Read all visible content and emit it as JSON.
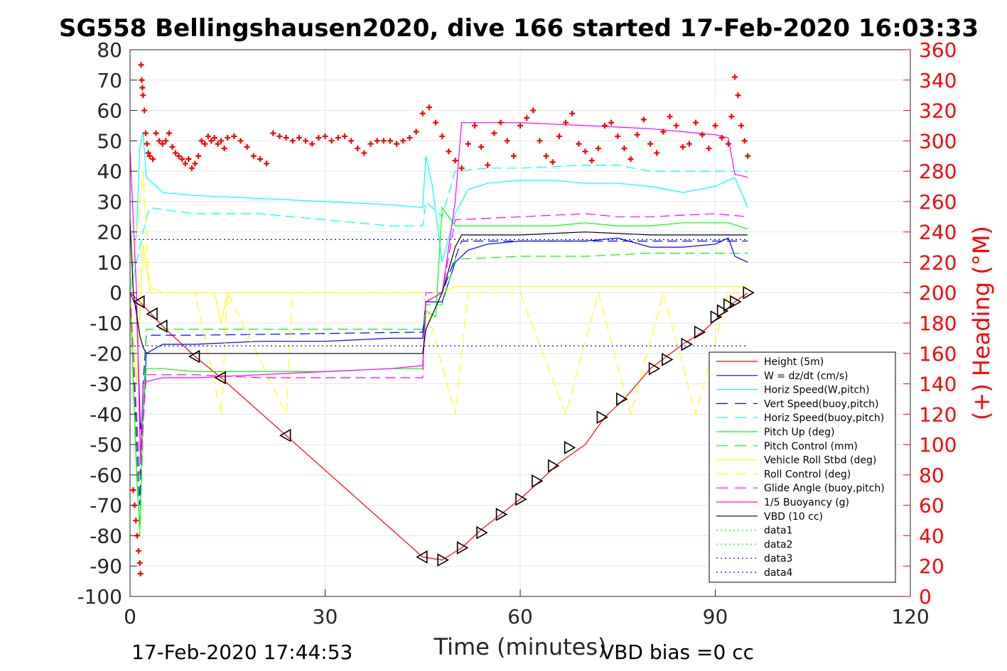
{
  "chart_data": {
    "type": "line",
    "title": "SG558 Bellingshausen2020, dive 166 started 17-Feb-2020 16:03:33",
    "xlabel": "Time (minutes)",
    "ylabel": "",
    "ylabel_right": "(+) Heading (°M)",
    "xlim": [
      0,
      120
    ],
    "ylim": [
      -100,
      80
    ],
    "ylim_right": [
      0,
      360
    ],
    "xticks": [
      "0",
      "30",
      "60",
      "90",
      "120"
    ],
    "yticks": [
      "80",
      "70",
      "60",
      "50",
      "40",
      "30",
      "20",
      "10",
      "0",
      "-10",
      "-20",
      "-30",
      "-40",
      "-50",
      "-60",
      "-70",
      "-80",
      "-90",
      "-100"
    ],
    "yticks_right": [
      "360",
      "340",
      "320",
      "300",
      "280",
      "260",
      "240",
      "220",
      "200",
      "180",
      "160",
      "140",
      "120",
      "100",
      "80",
      "60",
      "40",
      "20",
      "0"
    ],
    "grid": true,
    "legend_position": "bottom-right",
    "footer_left": "17-Feb-2020 17:44:53",
    "footer_right": "VBD bias =0 cc",
    "series": [
      {
        "name": "Height (5m)",
        "color": "#ff0000",
        "style": "solid",
        "x": [
          0,
          1.5,
          5,
          10,
          14,
          24,
          35,
          45,
          48,
          51,
          54,
          57,
          60,
          63,
          66,
          70,
          73,
          76,
          80,
          85,
          88,
          91,
          93,
          95
        ],
        "y": [
          0,
          -3,
          -11,
          -21,
          -28,
          -47,
          -68,
          -87,
          -88,
          -84,
          -78,
          -73,
          -68,
          -62,
          -56,
          -50,
          -41,
          -35,
          -25,
          -17,
          -13,
          -7,
          -3,
          0
        ]
      },
      {
        "name": "W = dz/dt (cm/s)",
        "color": "#0000ff",
        "style": "solid",
        "x": [
          0,
          1,
          1.6,
          2,
          2.5,
          5,
          10,
          20,
          30,
          40,
          45,
          45.5,
          48,
          50,
          52,
          55,
          60,
          65,
          70,
          75,
          80,
          85,
          90,
          92,
          93,
          95
        ],
        "y": [
          0,
          -5,
          -45,
          -40,
          -20,
          -17,
          -17,
          -16,
          -16,
          -15,
          -15,
          -3,
          -3,
          10,
          14,
          16,
          17,
          17,
          17,
          18,
          15,
          15,
          16,
          18,
          12,
          10
        ]
      },
      {
        "name": "Horiz Speed(W,pitch)",
        "color": "#00ffff",
        "style": "solid",
        "x": [
          0,
          1,
          1.5,
          2,
          2.5,
          5,
          10,
          20,
          30,
          40,
          45,
          45.5,
          46.5,
          48,
          50,
          52,
          55,
          60,
          65,
          70,
          75,
          80,
          85,
          90,
          93,
          95
        ],
        "y": [
          0,
          20,
          48,
          53,
          38,
          33,
          32,
          31,
          30,
          29,
          28,
          45,
          35,
          10,
          26,
          34,
          36,
          37,
          37,
          36,
          36,
          35,
          33,
          35,
          38,
          28
        ]
      },
      {
        "name": "Vert Speed(buoy,pitch)",
        "color": "#0000ff",
        "style": "dashed",
        "x": [
          0,
          1.5,
          2,
          2.5,
          10,
          45,
          45.5,
          48,
          51,
          95
        ],
        "y": [
          0,
          -70,
          -30,
          -14,
          -14,
          -13,
          -3,
          0,
          17,
          17
        ]
      },
      {
        "name": "Horiz Speed(buoy,pitch)",
        "color": "#00ffff",
        "style": "dashed",
        "x": [
          0,
          2,
          3,
          10,
          20,
          30,
          40,
          45,
          45.5,
          48,
          50,
          55,
          60,
          70,
          75,
          80,
          90,
          95
        ],
        "y": [
          0,
          20,
          28,
          26,
          26,
          24,
          22,
          22,
          30,
          25,
          40,
          41,
          41,
          42,
          42,
          40,
          40,
          40
        ]
      },
      {
        "name": "Pitch Up (deg)",
        "color": "#00ff00",
        "style": "solid",
        "x": [
          0,
          1,
          1.5,
          2,
          2.5,
          5,
          10,
          20,
          30,
          40,
          45,
          45.5,
          47,
          48,
          50,
          52,
          55,
          60,
          65,
          70,
          75,
          80,
          85,
          90,
          92,
          95
        ],
        "y": [
          0,
          -60,
          -78,
          -40,
          -25,
          -25,
          -26,
          -26,
          -26,
          -25,
          -25,
          -6,
          -8,
          28,
          22,
          22,
          22,
          22,
          22,
          23,
          22,
          22,
          23,
          23,
          23,
          21
        ]
      },
      {
        "name": "Pitch Control (mm)",
        "color": "#00ff00",
        "style": "dashed",
        "x": [
          0,
          1.5,
          2.5,
          10,
          45,
          45.5,
          48,
          50,
          60,
          70,
          80,
          90,
          95
        ],
        "y": [
          0,
          -80,
          -12,
          -12,
          -12,
          -4,
          -4,
          11,
          12,
          12,
          13,
          13,
          13
        ]
      },
      {
        "name": "Vehicle Roll Stbd (deg)",
        "color": "#ffff00",
        "style": "solid",
        "x": [
          0,
          1,
          2,
          3,
          4,
          5,
          10,
          13,
          14,
          15,
          20,
          30,
          40,
          45,
          48,
          50,
          55,
          60,
          65,
          70,
          75,
          80,
          85,
          90,
          93,
          95
        ],
        "y": [
          0,
          -30,
          16,
          2,
          1,
          0,
          0,
          0,
          -10,
          0,
          0,
          0,
          0,
          0,
          0,
          2,
          2,
          2,
          2,
          2,
          2,
          2,
          2,
          2,
          2,
          2
        ]
      },
      {
        "name": "Roll Control (deg)",
        "color": "#ffff00",
        "style": "dashed",
        "x": [
          0,
          2,
          3,
          10,
          14,
          15,
          24,
          25,
          45,
          50,
          52,
          60,
          67,
          72,
          77,
          82,
          87,
          92,
          95
        ],
        "y": [
          0,
          40,
          0,
          0,
          -40,
          0,
          -40,
          0,
          0,
          -40,
          0,
          0,
          -40,
          0,
          -40,
          0,
          -40,
          0,
          0
        ]
      },
      {
        "name": "Glide Angle (buoy,pitch)",
        "color": "#ff00ff",
        "style": "dashed",
        "x": [
          0,
          1.5,
          2.5,
          5,
          10,
          20,
          30,
          40,
          45,
          45.5,
          48,
          50,
          60,
          70,
          75,
          80,
          90,
          95
        ],
        "y": [
          0,
          -60,
          -27,
          -27,
          -27,
          -28,
          -28,
          -28,
          -28,
          0,
          0,
          24,
          25,
          26,
          25,
          25,
          26,
          25
        ]
      },
      {
        "name": "1/5 Buoyancy (g)",
        "color": "#ff00ff",
        "style": "solid",
        "x": [
          0,
          1,
          1.6,
          2,
          3,
          5,
          10,
          20,
          30,
          40,
          45,
          45.5,
          48,
          50,
          51,
          60,
          70,
          80,
          85,
          90,
          92,
          93,
          95
        ],
        "y": [
          47,
          0,
          -55,
          -30,
          -29,
          -28,
          -28,
          -27,
          -26,
          -25,
          -24,
          -3,
          0,
          30,
          56,
          56,
          55,
          54,
          53,
          52,
          51,
          39,
          38
        ]
      },
      {
        "name": "VBD (10 cc)",
        "color": "#000000",
        "style": "solid",
        "x": [
          0,
          0.5,
          1.5,
          2,
          2.5,
          5,
          10,
          20,
          30,
          40,
          45,
          45.5,
          48,
          50,
          51,
          60,
          70,
          80,
          90,
          95
        ],
        "y": [
          24,
          0,
          -14,
          -18,
          -20,
          -20,
          -20,
          -20,
          -20,
          -20,
          -20,
          -12,
          0,
          15,
          19,
          19,
          20,
          19,
          19,
          19
        ]
      },
      {
        "name": "data1",
        "color": "#00ff00",
        "style": "dotted",
        "x": [],
        "y": []
      },
      {
        "name": "data2",
        "color": "#00ff00",
        "style": "dotted",
        "x": [],
        "y": []
      },
      {
        "name": "data3",
        "color": "#0000ff",
        "style": "dotted",
        "x": [
          0,
          95
        ],
        "y": [
          17.5,
          17.5
        ]
      },
      {
        "name": "data4",
        "color": "#0000ff",
        "style": "dotted",
        "x": [
          0,
          95
        ],
        "y": [
          -17.5,
          -17.5
        ]
      }
    ],
    "heading": {
      "name": "(+) Heading (°M)",
      "color": "#ff0000",
      "marker": "+",
      "axis": "right",
      "x": [
        0.5,
        0.7,
        0.9,
        1.1,
        1.3,
        1.5,
        1.6,
        1.7,
        1.8,
        1.9,
        2.0,
        2.2,
        2.4,
        2.6,
        2.8,
        3.0,
        3.5,
        4,
        4.5,
        5,
        5.5,
        6,
        6.5,
        7,
        7.5,
        8,
        8.5,
        9,
        9.5,
        10,
        10.5,
        11,
        11.5,
        12,
        12.5,
        13,
        13.5,
        14,
        14.5,
        15,
        16,
        17,
        18,
        19,
        20,
        21,
        22,
        23,
        24,
        25,
        26,
        27,
        28,
        29,
        30,
        31,
        32,
        33,
        34,
        35,
        36,
        37,
        38,
        39,
        40,
        41,
        42,
        43,
        44,
        45,
        46,
        47,
        48,
        49,
        50,
        51,
        52,
        53,
        54,
        55,
        56,
        57,
        58,
        59,
        60,
        61,
        62,
        63,
        64,
        65,
        66,
        67,
        68,
        69,
        70,
        71,
        72,
        73,
        74,
        75,
        76,
        77,
        78,
        79,
        80,
        81,
        82,
        83,
        84,
        85,
        86,
        87,
        88,
        89,
        90,
        91,
        92,
        92.5,
        93,
        93.5,
        94,
        94.5,
        95
      ],
      "y": [
        70,
        60,
        50,
        40,
        30,
        22,
        15,
        350,
        340,
        335,
        330,
        320,
        305,
        298,
        292,
        290,
        288,
        305,
        300,
        298,
        300,
        305,
        296,
        292,
        290,
        288,
        285,
        288,
        282,
        285,
        290,
        300,
        298,
        303,
        300,
        302,
        298,
        300,
        295,
        302,
        303,
        300,
        296,
        290,
        288,
        285,
        305,
        303,
        302,
        300,
        302,
        300,
        298,
        302,
        303,
        300,
        302,
        303,
        300,
        295,
        292,
        298,
        300,
        300,
        300,
        298,
        300,
        302,
        306,
        318,
        322,
        312,
        303,
        293,
        287,
        282,
        298,
        310,
        296,
        284,
        305,
        312,
        300,
        290,
        310,
        315,
        320,
        300,
        290,
        286,
        303,
        312,
        318,
        298,
        293,
        287,
        295,
        310,
        312,
        303,
        295,
        288,
        304,
        314,
        298,
        292,
        306,
        316,
        310,
        296,
        298,
        312,
        304,
        295,
        310,
        302,
        298,
        316,
        342,
        330,
        310,
        300,
        290
      ]
    },
    "markers": {
      "name": "triangle markers (on Height)",
      "color": "#000000",
      "x": [
        1.5,
        3.5,
        5,
        10,
        14,
        24,
        45,
        48,
        51,
        54,
        57,
        60,
        62.5,
        65,
        67.5,
        72.5,
        75.5,
        80.5,
        82.5,
        85.5,
        87.5,
        90,
        91,
        92,
        93,
        95
      ],
      "y": [
        -3,
        -7,
        -11,
        -21,
        -28,
        -47,
        -87,
        -88,
        -84,
        -79,
        -73,
        -68,
        -62,
        -57,
        -51,
        -41,
        -35,
        -25,
        -22,
        -17,
        -13,
        -8,
        -6,
        -4,
        -3,
        0
      ]
    }
  }
}
